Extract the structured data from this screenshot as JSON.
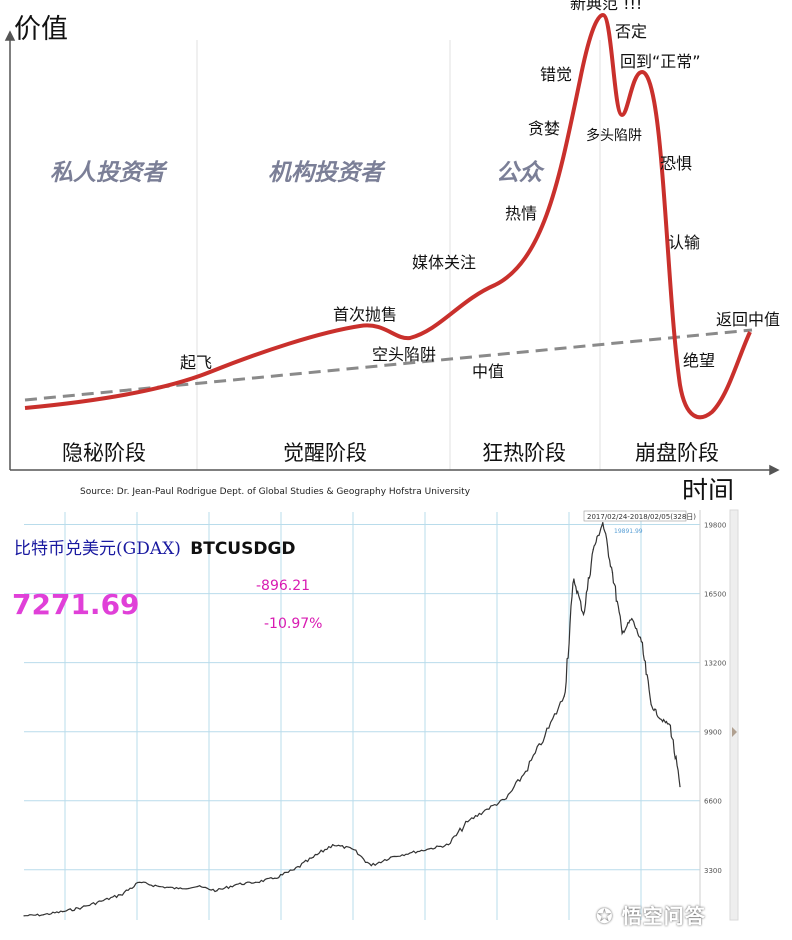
{
  "top_chart": {
    "chart_data": {
      "type": "line",
      "ylabel": "价值",
      "xlabel": "时间",
      "groups": [
        "私人投资者",
        "机构投资者",
        "公众"
      ],
      "stages": [
        "隐秘阶段",
        "觉醒阶段",
        "狂热阶段",
        "崩盘阶段"
      ],
      "annotations": [
        {
          "label": "新典范 !!!"
        },
        {
          "label": "否定"
        },
        {
          "label": "回到“正常”"
        },
        {
          "label": "错觉"
        },
        {
          "label": "贪婪"
        },
        {
          "label": "多头陷阱"
        },
        {
          "label": "恐惧"
        },
        {
          "label": "热情"
        },
        {
          "label": "认输"
        },
        {
          "label": "媒体关注"
        },
        {
          "label": "首次抛售"
        },
        {
          "label": "空头陷阱"
        },
        {
          "label": "起飞"
        },
        {
          "label": "中值"
        },
        {
          "label": "返回中值"
        },
        {
          "label": "绝望"
        }
      ],
      "source": "Source: Dr. Jean-Paul Rodrigue Dept. of Global Studies & Geography Hofstra University",
      "colors": {
        "curve": "#c9302c",
        "mean": "#8a8a8a",
        "group": "#7b7f97"
      }
    }
  },
  "bottom_chart": {
    "header": {
      "instrument": "比特币兑美元(GDAX)",
      "symbol": "BTCUSDGD",
      "price": "7271.69",
      "change": "-896.21",
      "change_pct": "-10.97%"
    },
    "range_label": "2017/02/24-2018/02/05(328日)",
    "peak_label": "19891.99",
    "watermark": "悟空问答",
    "colors": {
      "price": "#e040d8",
      "change": "#d81bb2",
      "line": "#333333",
      "grid": "#b9dceb"
    },
    "chart_data": {
      "type": "line",
      "yticks": [
        3300,
        6600,
        9900,
        13200,
        16500,
        19800
      ],
      "ylim": [
        900,
        20400
      ],
      "x": [
        0,
        20,
        40,
        60,
        80,
        100,
        120,
        140,
        160,
        180,
        200,
        220,
        240,
        260,
        280,
        300,
        320,
        340,
        360,
        380,
        400,
        420,
        440,
        460,
        480,
        500,
        520,
        540,
        560,
        570,
        580,
        590,
        600,
        610,
        620,
        630,
        640,
        650,
        660,
        670,
        680
      ],
      "values": [
        1100,
        1150,
        1300,
        1500,
        1800,
        2100,
        2700,
        2500,
        2400,
        2500,
        2300,
        2600,
        2700,
        2900,
        3300,
        3900,
        4500,
        4300,
        3500,
        3900,
        4100,
        4300,
        4500,
        5600,
        6200,
        6700,
        8000,
        9700,
        11600,
        17200,
        15500,
        18600,
        19891.99,
        17500,
        14600,
        15300,
        14200,
        11200,
        10500,
        10200,
        7271.69
      ]
    }
  }
}
